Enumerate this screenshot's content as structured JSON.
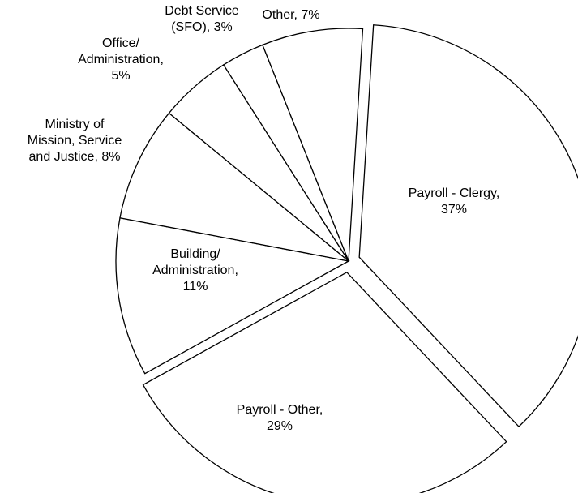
{
  "chart_data": {
    "type": "pie",
    "title": "",
    "legend": "none",
    "slices": [
      {
        "label": "Payroll - Clergy",
        "value": 37,
        "exploded": true,
        "label_lines": [
          "Payroll - Clergy,",
          "37%"
        ]
      },
      {
        "label": "Payroll - Other",
        "value": 29,
        "exploded": true,
        "label_lines": [
          "Payroll - Other,",
          "29%"
        ]
      },
      {
        "label": "Building/ Administration",
        "value": 11,
        "exploded": false,
        "label_lines": [
          "Building/",
          "Administration,",
          "11%"
        ]
      },
      {
        "label": "Ministry of Mission, Service and Justice",
        "value": 8,
        "exploded": false,
        "label_lines": [
          "Ministry of",
          "Mission, Service",
          "and Justice, 8%"
        ]
      },
      {
        "label": "Office/ Administration",
        "value": 5,
        "exploded": false,
        "label_lines": [
          "Office/",
          "Administration,",
          "5%"
        ]
      },
      {
        "label": "Debt Service (SFO)",
        "value": 3,
        "exploded": false,
        "label_lines": [
          "Debt Service",
          "(SFO), 3%"
        ]
      },
      {
        "label": "Other",
        "value": 7,
        "exploded": false,
        "label_lines": [
          "Other, 7%"
        ]
      }
    ]
  }
}
